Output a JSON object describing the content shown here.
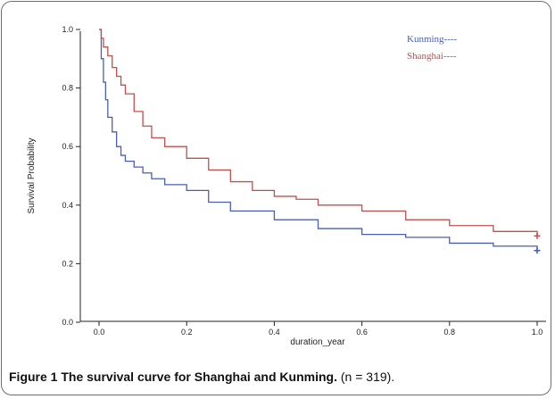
{
  "chart_data": {
    "type": "line",
    "xlabel": "duration_year",
    "ylabel": "Survival Probability",
    "xlim": [
      0,
      1
    ],
    "ylim": [
      0,
      1
    ],
    "x_ticks": [
      "0.0",
      "0.2",
      "0.4",
      "0.6",
      "0.8",
      "1.0"
    ],
    "y_ticks": [
      "0.0",
      "0.2",
      "0.4",
      "0.6",
      "0.8",
      "1.0"
    ],
    "legend_position": "top-right",
    "series": [
      {
        "name": "Kunming----",
        "color": "#4b5fb0",
        "x": [
          0,
          0.005,
          0.01,
          0.015,
          0.02,
          0.03,
          0.04,
          0.05,
          0.06,
          0.08,
          0.1,
          0.12,
          0.15,
          0.2,
          0.25,
          0.3,
          0.4,
          0.5,
          0.6,
          0.7,
          0.8,
          0.9,
          1.0
        ],
        "y": [
          1.0,
          0.9,
          0.82,
          0.76,
          0.7,
          0.65,
          0.6,
          0.57,
          0.55,
          0.53,
          0.51,
          0.49,
          0.47,
          0.45,
          0.41,
          0.38,
          0.35,
          0.32,
          0.3,
          0.29,
          0.27,
          0.26,
          0.245
        ]
      },
      {
        "name": "Shanghai----",
        "color": "#c0504d",
        "x": [
          0,
          0.005,
          0.01,
          0.02,
          0.03,
          0.04,
          0.05,
          0.06,
          0.08,
          0.1,
          0.12,
          0.15,
          0.2,
          0.25,
          0.3,
          0.35,
          0.4,
          0.45,
          0.5,
          0.6,
          0.7,
          0.8,
          0.9,
          1.0
        ],
        "y": [
          1.0,
          0.97,
          0.94,
          0.91,
          0.87,
          0.84,
          0.81,
          0.78,
          0.72,
          0.67,
          0.63,
          0.6,
          0.56,
          0.52,
          0.48,
          0.45,
          0.43,
          0.42,
          0.4,
          0.38,
          0.35,
          0.33,
          0.31,
          0.295
        ]
      }
    ]
  },
  "caption": {
    "label": "Figure 1",
    "title": "The survival curve for Shanghai and Kunming.",
    "note": "(n = 319)."
  }
}
